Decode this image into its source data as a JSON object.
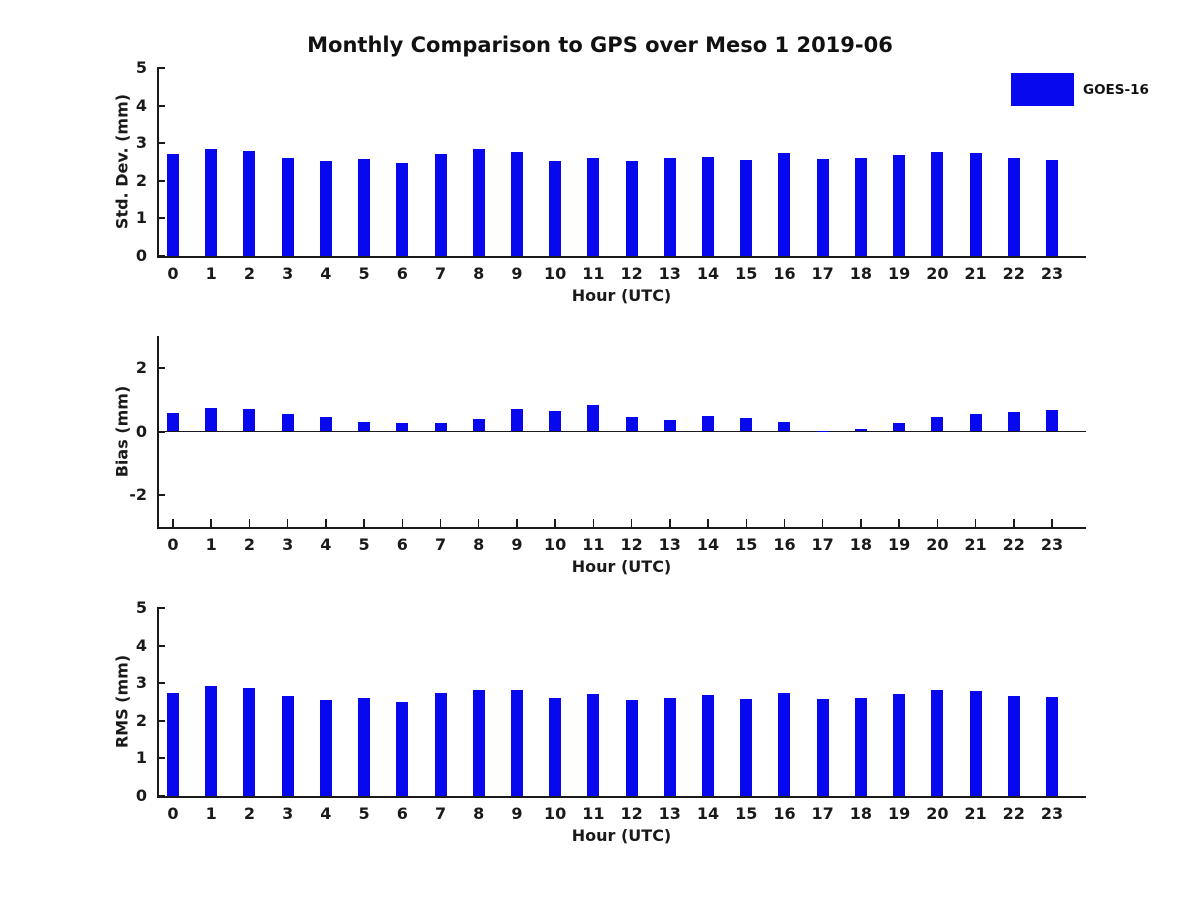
{
  "title": "Monthly Comparison to GPS over Meso 1 2019-06",
  "legend": {
    "label": "GOES-16",
    "position": "top-right"
  },
  "colors": {
    "bar": "#0808ee",
    "axis": "#1a1a1a",
    "text": "#1a1a1a",
    "background": "#ffffff"
  },
  "chart_data": [
    {
      "type": "bar",
      "panel": "std-dev",
      "title": "",
      "xlabel": "Hour (UTC)",
      "ylabel": "Std. Dev. (mm)",
      "categories": [
        "0",
        "1",
        "2",
        "3",
        "4",
        "5",
        "6",
        "7",
        "8",
        "9",
        "10",
        "11",
        "12",
        "13",
        "14",
        "15",
        "16",
        "17",
        "18",
        "19",
        "20",
        "21",
        "22",
        "23"
      ],
      "series": [
        {
          "name": "GOES-16",
          "values": [
            2.7,
            2.85,
            2.78,
            2.61,
            2.53,
            2.58,
            2.47,
            2.72,
            2.83,
            2.75,
            2.53,
            2.61,
            2.52,
            2.6,
            2.63,
            2.56,
            2.74,
            2.58,
            2.6,
            2.68,
            2.77,
            2.74,
            2.6,
            2.54
          ]
        }
      ],
      "ylim": [
        0,
        5
      ],
      "yticks": [
        0,
        1,
        2,
        3,
        4,
        5
      ],
      "grid": false
    },
    {
      "type": "bar",
      "panel": "bias",
      "title": "",
      "xlabel": "Hour (UTC)",
      "ylabel": "Bias (mm)",
      "categories": [
        "0",
        "1",
        "2",
        "3",
        "4",
        "5",
        "6",
        "7",
        "8",
        "9",
        "10",
        "11",
        "12",
        "13",
        "14",
        "15",
        "16",
        "17",
        "18",
        "19",
        "20",
        "21",
        "22",
        "23"
      ],
      "series": [
        {
          "name": "GOES-16",
          "values": [
            0.57,
            0.74,
            0.71,
            0.56,
            0.44,
            0.31,
            0.28,
            0.27,
            0.38,
            0.71,
            0.64,
            0.84,
            0.46,
            0.37,
            0.49,
            0.41,
            0.3,
            0.02,
            0.09,
            0.28,
            0.45,
            0.55,
            0.62,
            0.66
          ]
        }
      ],
      "ylim": [
        -3,
        3
      ],
      "yticks": [
        -2,
        0,
        2
      ],
      "grid": false
    },
    {
      "type": "bar",
      "panel": "rms",
      "title": "",
      "xlabel": "Hour (UTC)",
      "ylabel": "RMS (mm)",
      "categories": [
        "0",
        "1",
        "2",
        "3",
        "4",
        "5",
        "6",
        "7",
        "8",
        "9",
        "10",
        "11",
        "12",
        "13",
        "14",
        "15",
        "16",
        "17",
        "18",
        "19",
        "20",
        "21",
        "22",
        "23"
      ],
      "series": [
        {
          "name": "GOES-16",
          "values": [
            2.73,
            2.93,
            2.86,
            2.66,
            2.55,
            2.61,
            2.5,
            2.73,
            2.83,
            2.83,
            2.61,
            2.7,
            2.55,
            2.61,
            2.68,
            2.59,
            2.74,
            2.58,
            2.61,
            2.7,
            2.82,
            2.79,
            2.66,
            2.63
          ]
        }
      ],
      "ylim": [
        0,
        5
      ],
      "yticks": [
        0,
        1,
        2,
        3,
        4,
        5
      ],
      "grid": false
    }
  ]
}
